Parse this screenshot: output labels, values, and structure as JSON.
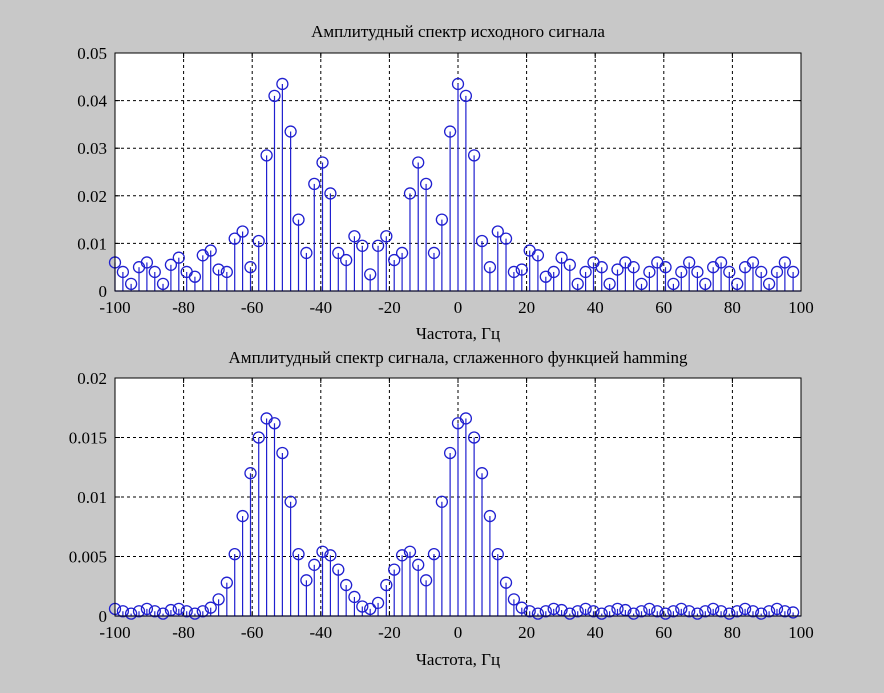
{
  "chart_data": [
    {
      "type": "stem",
      "title": "Амплитудный спектр исходного сигнала",
      "xlabel": "Частота,  Гц",
      "ylabel": "",
      "xlim": [
        -100,
        100
      ],
      "ylim": [
        0,
        0.05
      ],
      "xticks": [
        -100,
        -80,
        -60,
        -40,
        -20,
        0,
        20,
        40,
        60,
        80,
        100
      ],
      "xtick_labels": [
        "-100",
        "-80",
        "-60",
        "-40",
        "-20",
        "0",
        "20",
        "40",
        "60",
        "80",
        "100"
      ],
      "yticks": [
        0,
        0.01,
        0.02,
        0.03,
        0.04,
        0.05
      ],
      "ytick_labels": [
        "0",
        "0.01",
        "0.02",
        "0.03",
        "0.04",
        "0.05"
      ],
      "grid": true,
      "color": "#2020d0",
      "x": [
        -100,
        -97.7,
        -95.3,
        -93,
        -90.7,
        -88.4,
        -86,
        -83.7,
        -81.4,
        -79.1,
        -76.7,
        -74.4,
        -72.1,
        -69.8,
        -67.4,
        -65.1,
        -62.8,
        -60.5,
        -58.1,
        -55.8,
        -53.5,
        -51.2,
        -48.8,
        -46.5,
        -44.2,
        -41.9,
        -39.5,
        -37.2,
        -34.9,
        -32.6,
        -30.2,
        -27.9,
        -25.6,
        -23.3,
        -20.9,
        -18.6,
        -16.3,
        -14,
        -11.6,
        -9.3,
        -7,
        -4.7,
        -2.3,
        0,
        2.3,
        4.7,
        7,
        9.3,
        11.6,
        14,
        16.3,
        18.6,
        20.9,
        23.3,
        25.6,
        27.9,
        30.2,
        32.6,
        34.9,
        37.2,
        39.5,
        41.9,
        44.2,
        46.5,
        48.8,
        51.2,
        53.5,
        55.8,
        58.1,
        60.5,
        62.8,
        65.1,
        67.4,
        69.8,
        72.1,
        74.4,
        76.7,
        79.1,
        81.4,
        83.7,
        86,
        88.4,
        90.7,
        93,
        95.3,
        97.7
      ],
      "y": [
        0.006,
        0.004,
        0.0015,
        0.005,
        0.006,
        0.004,
        0.0015,
        0.0055,
        0.007,
        0.004,
        0.003,
        0.0075,
        0.0085,
        0.0045,
        0.004,
        0.011,
        0.0125,
        0.005,
        0.0105,
        0.0285,
        0.041,
        0.0435,
        0.0335,
        0.015,
        0.008,
        0.0225,
        0.027,
        0.0205,
        0.008,
        0.0065,
        0.0115,
        0.0095,
        0.0035,
        0.0095,
        0.0115,
        0.0065,
        0.008,
        0.0205,
        0.027,
        0.0225,
        0.008,
        0.015,
        0.0335,
        0.0435,
        0.041,
        0.0285,
        0.0105,
        0.005,
        0.0125,
        0.011,
        0.004,
        0.0045,
        0.0085,
        0.0075,
        0.003,
        0.004,
        0.007,
        0.0055,
        0.0015,
        0.004,
        0.006,
        0.005,
        0.0015,
        0.0045,
        0.006,
        0.005,
        0.0015,
        0.004,
        0.006,
        0.005,
        0.0015,
        0.004,
        0.006,
        0.004,
        0.0015,
        0.005,
        0.006,
        0.004,
        0.0015,
        0.005,
        0.006,
        0.004,
        0.0015,
        0.004,
        0.006,
        0.004
      ]
    },
    {
      "type": "stem",
      "title": "Амплитудный спектр сигнала, сглаженного функцией hamming",
      "xlabel": "Частота,  Гц",
      "ylabel": "",
      "xlim": [
        -100,
        100
      ],
      "ylim": [
        0,
        0.02
      ],
      "xticks": [
        -100,
        -80,
        -60,
        -40,
        -20,
        0,
        20,
        40,
        60,
        80,
        100
      ],
      "xtick_labels": [
        "-100",
        "-80",
        "-60",
        "-40",
        "-20",
        "0",
        "20",
        "40",
        "60",
        "80",
        "100"
      ],
      "yticks": [
        0,
        0.005,
        0.01,
        0.015,
        0.02
      ],
      "ytick_labels": [
        "0",
        "0.005",
        "0.01",
        "0.015",
        "0.02"
      ],
      "grid": true,
      "color": "#2020d0",
      "x": [
        -100,
        -97.7,
        -95.3,
        -93,
        -90.7,
        -88.4,
        -86,
        -83.7,
        -81.4,
        -79.1,
        -76.7,
        -74.4,
        -72.1,
        -69.8,
        -67.4,
        -65.1,
        -62.8,
        -60.5,
        -58.1,
        -55.8,
        -53.5,
        -51.2,
        -48.8,
        -46.5,
        -44.2,
        -41.9,
        -39.5,
        -37.2,
        -34.9,
        -32.6,
        -30.2,
        -27.9,
        -25.6,
        -23.3,
        -20.9,
        -18.6,
        -16.3,
        -14,
        -11.6,
        -9.3,
        -7,
        -4.7,
        -2.3,
        0,
        2.3,
        4.7,
        7,
        9.3,
        11.6,
        14,
        16.3,
        18.6,
        20.9,
        23.3,
        25.6,
        27.9,
        30.2,
        32.6,
        34.9,
        37.2,
        39.5,
        41.9,
        44.2,
        46.5,
        48.8,
        51.2,
        53.5,
        55.8,
        58.1,
        60.5,
        62.8,
        65.1,
        67.4,
        69.8,
        72.1,
        74.4,
        76.7,
        79.1,
        81.4,
        83.7,
        86,
        88.4,
        90.7,
        93,
        95.3,
        97.7
      ],
      "y": [
        0.0006,
        0.0004,
        0.0002,
        0.0004,
        0.0006,
        0.0004,
        0.0002,
        0.0005,
        0.0006,
        0.0004,
        0.0002,
        0.0004,
        0.0007,
        0.0014,
        0.0028,
        0.0052,
        0.0084,
        0.012,
        0.015,
        0.0166,
        0.0162,
        0.0137,
        0.0096,
        0.0052,
        0.003,
        0.0043,
        0.0054,
        0.0051,
        0.0039,
        0.0026,
        0.0016,
        0.0008,
        0.0006,
        0.0011,
        0.0026,
        0.0039,
        0.0051,
        0.0054,
        0.0043,
        0.003,
        0.0052,
        0.0096,
        0.0137,
        0.0162,
        0.0166,
        0.015,
        0.012,
        0.0084,
        0.0052,
        0.0028,
        0.0014,
        0.0007,
        0.0004,
        0.0002,
        0.0004,
        0.0006,
        0.0005,
        0.0002,
        0.0004,
        0.0006,
        0.0004,
        0.0002,
        0.0004,
        0.0006,
        0.0005,
        0.0002,
        0.0004,
        0.0006,
        0.0004,
        0.0002,
        0.0004,
        0.0006,
        0.0004,
        0.0002,
        0.0004,
        0.0006,
        0.0004,
        0.0002,
        0.0004,
        0.0006,
        0.0004,
        0.0002,
        0.0004,
        0.0006,
        0.0004,
        0.0003
      ]
    }
  ]
}
